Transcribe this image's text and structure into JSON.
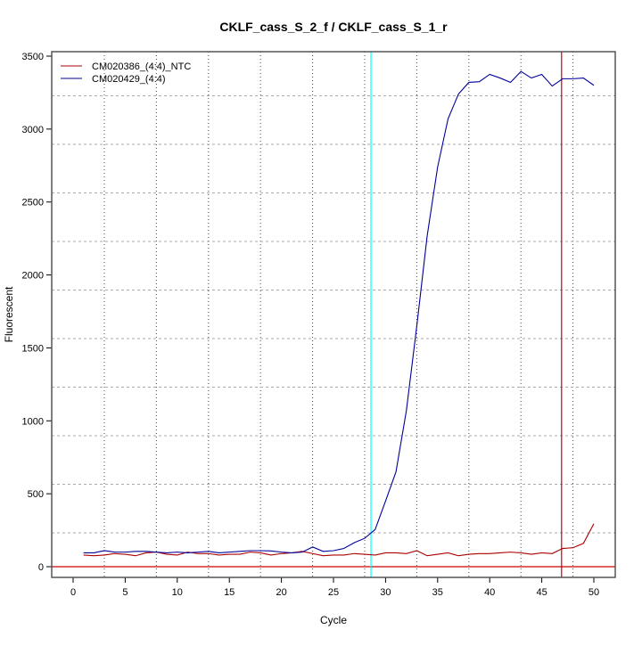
{
  "chart_data": {
    "type": "line",
    "title": "CKLF_cass_S_2_f / CKLF_cass_S_1_r",
    "xlabel": "Cycle",
    "ylabel": "Fluorescent",
    "xlim": [
      -2,
      52
    ],
    "ylim": [
      -80,
      3520
    ],
    "xticks": [
      0,
      5,
      10,
      15,
      20,
      25,
      30,
      35,
      40,
      45,
      50
    ],
    "yticks": [
      0,
      500,
      1000,
      1500,
      2000,
      2500,
      3000,
      3500
    ],
    "legend_position": "top-left",
    "threshold": 0,
    "threshold_color": "#cc0000",
    "markers": [
      {
        "x": 28.6,
        "color": "#00ffff"
      },
      {
        "x": 46.9,
        "color": "#cc0000"
      }
    ],
    "series": [
      {
        "name": "CM020386_(4:4)_NTC",
        "color": "#aa0000",
        "x": [
          1,
          2,
          3,
          4,
          5,
          6,
          7,
          8,
          9,
          10,
          11,
          12,
          13,
          14,
          15,
          16,
          17,
          18,
          19,
          20,
          21,
          22,
          23,
          24,
          25,
          26,
          27,
          28,
          29,
          30,
          31,
          32,
          33,
          34,
          35,
          36,
          37,
          38,
          39,
          40,
          41,
          42,
          43,
          44,
          45,
          46,
          47,
          48,
          49,
          50
        ],
        "values": [
          80,
          75,
          80,
          90,
          85,
          75,
          95,
          100,
          85,
          80,
          100,
          90,
          90,
          80,
          85,
          85,
          100,
          95,
          80,
          90,
          95,
          105,
          90,
          75,
          80,
          80,
          90,
          85,
          80,
          95,
          95,
          90,
          110,
          75,
          85,
          95,
          75,
          85,
          90,
          90,
          95,
          100,
          95,
          85,
          95,
          90,
          125,
          130,
          160,
          295
        ]
      },
      {
        "name": "CM020429_(4:4)",
        "color": "#000099",
        "x": [
          1,
          2,
          3,
          4,
          5,
          6,
          7,
          8,
          9,
          10,
          11,
          12,
          13,
          14,
          15,
          16,
          17,
          18,
          19,
          20,
          21,
          22,
          23,
          24,
          25,
          26,
          27,
          28,
          29,
          30,
          31,
          32,
          33,
          34,
          35,
          36,
          37,
          38,
          39,
          40,
          41,
          42,
          43,
          44,
          45,
          46,
          47,
          48,
          49,
          50
        ],
        "values": [
          95,
          95,
          110,
          100,
          100,
          105,
          105,
          100,
          95,
          100,
          95,
          100,
          105,
          95,
          100,
          105,
          110,
          110,
          108,
          100,
          95,
          100,
          135,
          105,
          110,
          125,
          165,
          195,
          255,
          450,
          650,
          1070,
          1650,
          2270,
          2740,
          3070,
          3240,
          3320,
          3325,
          3375,
          3350,
          3320,
          3395,
          3350,
          3375,
          3295,
          3345,
          3345,
          3350,
          3300
        ]
      }
    ]
  }
}
